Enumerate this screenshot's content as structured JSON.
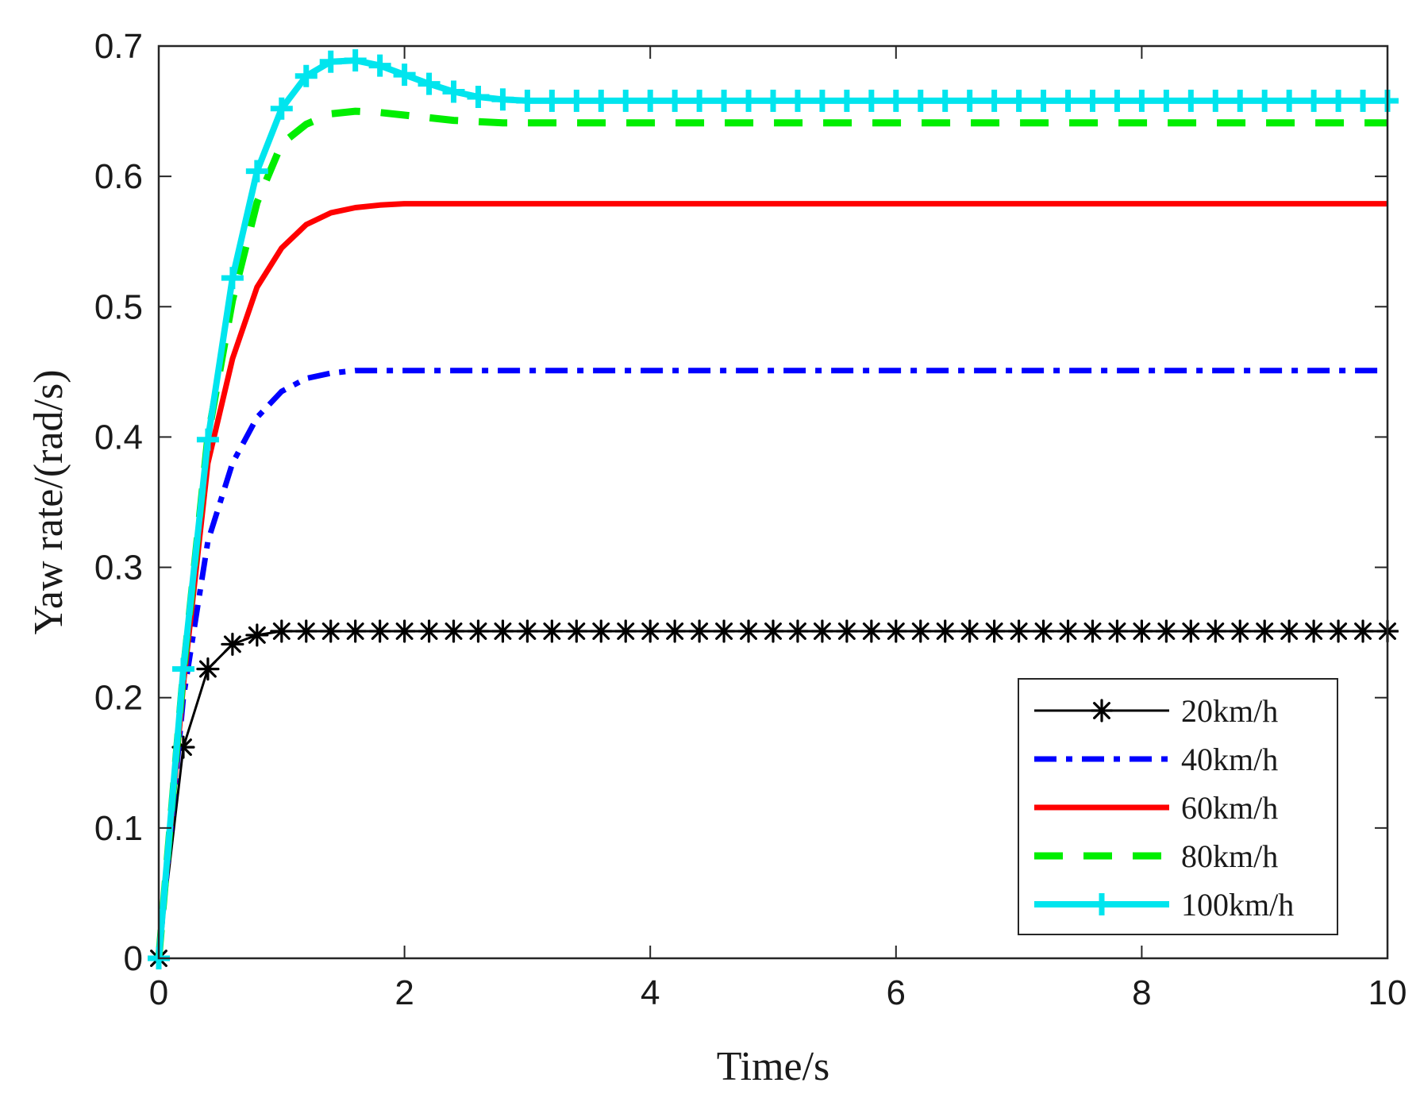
{
  "chart_data": {
    "type": "line",
    "title": "",
    "xlabel": "Time/s",
    "ylabel": "Yaw rate/(rad/s)",
    "xlim": [
      0,
      10
    ],
    "ylim": [
      0,
      0.7
    ],
    "xticks": [
      0,
      2,
      4,
      6,
      8,
      10
    ],
    "yticks": [
      0,
      0.1,
      0.2,
      0.3,
      0.4,
      0.5,
      0.6,
      0.7
    ],
    "xtick_labels": [
      "0",
      "2",
      "4",
      "6",
      "8",
      "10"
    ],
    "ytick_labels": [
      "0",
      "0.1",
      "0.2",
      "0.3",
      "0.4",
      "0.5",
      "0.6",
      "0.7"
    ],
    "grid": false,
    "legend_position": "bottom-right",
    "series": [
      {
        "name": "20km/h",
        "color": "#000000",
        "style": "solid",
        "marker": "asterisk",
        "x": [
          0,
          0.2,
          0.4,
          0.6,
          0.8,
          1.0,
          1.2,
          1.4,
          1.6,
          1.8,
          2.0,
          2.2,
          2.4,
          2.6,
          2.8,
          3.0,
          3.2,
          3.4,
          3.6,
          3.8,
          4.0,
          4.2,
          4.4,
          4.6,
          4.8,
          5.0,
          5.2,
          5.4,
          5.6,
          5.8,
          6.0,
          6.2,
          6.4,
          6.6,
          6.8,
          7.0,
          7.2,
          7.4,
          7.6,
          7.8,
          8.0,
          8.2,
          8.4,
          8.6,
          8.8,
          9.0,
          9.2,
          9.4,
          9.6,
          9.8,
          10.0
        ],
        "y": [
          0,
          0.162,
          0.222,
          0.241,
          0.248,
          0.251,
          0.251,
          0.251,
          0.251,
          0.251,
          0.251,
          0.251,
          0.251,
          0.251,
          0.251,
          0.251,
          0.251,
          0.251,
          0.251,
          0.251,
          0.251,
          0.251,
          0.251,
          0.251,
          0.251,
          0.251,
          0.251,
          0.251,
          0.251,
          0.251,
          0.251,
          0.251,
          0.251,
          0.251,
          0.251,
          0.251,
          0.251,
          0.251,
          0.251,
          0.251,
          0.251,
          0.251,
          0.251,
          0.251,
          0.251,
          0.251,
          0.251,
          0.251,
          0.251,
          0.251,
          0.251
        ]
      },
      {
        "name": "40km/h",
        "color": "#0000ff",
        "style": "dashdot",
        "marker": "none",
        "x": [
          0,
          0.2,
          0.4,
          0.6,
          0.8,
          1.0,
          1.2,
          1.4,
          1.6,
          1.8,
          2.0,
          3.0,
          4.0,
          5.0,
          6.0,
          7.0,
          8.0,
          9.0,
          10.0
        ],
        "y": [
          0,
          0.2,
          0.32,
          0.38,
          0.415,
          0.435,
          0.445,
          0.449,
          0.451,
          0.451,
          0.451,
          0.451,
          0.451,
          0.451,
          0.451,
          0.451,
          0.451,
          0.451,
          0.451
        ]
      },
      {
        "name": "60km/h",
        "color": "#ff0000",
        "style": "solid",
        "marker": "none",
        "x": [
          0,
          0.2,
          0.4,
          0.6,
          0.8,
          1.0,
          1.2,
          1.4,
          1.6,
          1.8,
          2.0,
          3.0,
          4.0,
          5.0,
          6.0,
          7.0,
          8.0,
          9.0,
          10.0
        ],
        "y": [
          0,
          0.21,
          0.38,
          0.46,
          0.515,
          0.545,
          0.563,
          0.572,
          0.576,
          0.578,
          0.579,
          0.579,
          0.579,
          0.579,
          0.579,
          0.579,
          0.579,
          0.579,
          0.579
        ]
      },
      {
        "name": "80km/h",
        "color": "#00ee00",
        "style": "dashed",
        "marker": "none",
        "x": [
          0,
          0.2,
          0.4,
          0.6,
          0.8,
          1.0,
          1.2,
          1.4,
          1.6,
          1.8,
          2.0,
          2.2,
          2.4,
          2.6,
          2.8,
          3.0,
          4.0,
          5.0,
          6.0,
          7.0,
          8.0,
          9.0,
          10.0
        ],
        "y": [
          0,
          0.22,
          0.4,
          0.505,
          0.58,
          0.625,
          0.64,
          0.648,
          0.65,
          0.649,
          0.647,
          0.645,
          0.643,
          0.642,
          0.641,
          0.641,
          0.641,
          0.641,
          0.641,
          0.641,
          0.641,
          0.641,
          0.641
        ]
      },
      {
        "name": "100km/h",
        "color": "#00e5ee",
        "style": "solid",
        "marker": "plus",
        "x": [
          0,
          0.2,
          0.4,
          0.6,
          0.8,
          1.0,
          1.2,
          1.4,
          1.6,
          1.8,
          2.0,
          2.2,
          2.4,
          2.6,
          2.8,
          3.0,
          3.2,
          3.4,
          3.6,
          3.8,
          4.0,
          4.2,
          4.4,
          4.6,
          4.8,
          5.0,
          5.2,
          5.4,
          5.6,
          5.8,
          6.0,
          6.2,
          6.4,
          6.6,
          6.8,
          7.0,
          7.2,
          7.4,
          7.6,
          7.8,
          8.0,
          8.2,
          8.4,
          8.6,
          8.8,
          9.0,
          9.2,
          9.4,
          9.6,
          9.8,
          10.0
        ],
        "y": [
          0,
          0.222,
          0.398,
          0.522,
          0.604,
          0.652,
          0.677,
          0.688,
          0.689,
          0.685,
          0.678,
          0.671,
          0.665,
          0.661,
          0.659,
          0.658,
          0.658,
          0.658,
          0.658,
          0.658,
          0.658,
          0.658,
          0.658,
          0.658,
          0.658,
          0.658,
          0.658,
          0.658,
          0.658,
          0.658,
          0.658,
          0.658,
          0.658,
          0.658,
          0.658,
          0.658,
          0.658,
          0.658,
          0.658,
          0.658,
          0.658,
          0.658,
          0.658,
          0.658,
          0.658,
          0.658,
          0.658,
          0.658,
          0.658,
          0.658,
          0.658
        ]
      }
    ]
  }
}
